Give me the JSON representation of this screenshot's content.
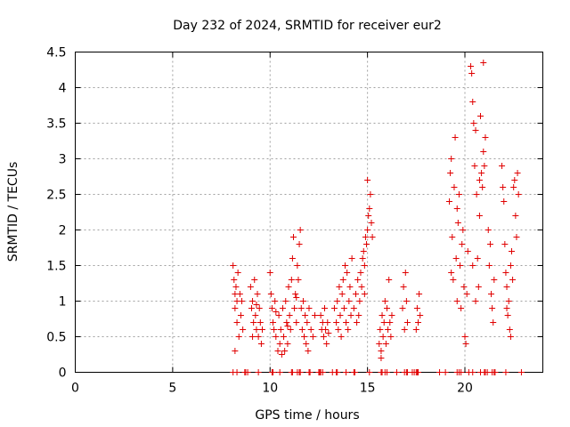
{
  "chart_data": {
    "type": "scatter",
    "title": "Day 232 of 2024, SRMTID for receiver eur2",
    "xlabel": "GPS time / hours",
    "ylabel": "SRMTID / TECUs",
    "xlim": [
      0,
      24
    ],
    "ylim": [
      0,
      4.5
    ],
    "xticks": [
      0,
      5,
      10,
      15,
      20
    ],
    "yticks": [
      0,
      0.5,
      1,
      1.5,
      2,
      2.5,
      3,
      3.5,
      4,
      4.5
    ],
    "xtick_labels": [
      "0",
      "5",
      "10",
      "15",
      "20"
    ],
    "ytick_labels": [
      "0",
      "0.5",
      "1",
      "1.5",
      "2",
      "2.5",
      "3",
      "3.5",
      "4",
      "4.5"
    ],
    "grid": true,
    "marker": "+",
    "color": "#e00000",
    "series": [
      {
        "name": "SRMTID",
        "points": [
          [
            8.1,
            1.5
          ],
          [
            8.15,
            1.3
          ],
          [
            8.2,
            1.1
          ],
          [
            8.2,
            0.9
          ],
          [
            8.25,
            1.2
          ],
          [
            8.3,
            0.7
          ],
          [
            8.3,
            1.0
          ],
          [
            8.35,
            1.4
          ],
          [
            8.4,
            0.5
          ],
          [
            8.45,
            1.1
          ],
          [
            8.5,
            0.8
          ],
          [
            8.55,
            1.0
          ],
          [
            8.6,
            0.6
          ],
          [
            8.2,
            0.3
          ],
          [
            9.0,
            1.2
          ],
          [
            9.05,
            0.9
          ],
          [
            9.1,
            1.0
          ],
          [
            9.15,
            0.7
          ],
          [
            9.2,
            1.3
          ],
          [
            9.25,
            0.8
          ],
          [
            9.3,
            0.6
          ],
          [
            9.35,
            1.1
          ],
          [
            9.4,
            0.5
          ],
          [
            9.45,
            0.9
          ],
          [
            9.5,
            0.7
          ],
          [
            9.55,
            0.4
          ],
          [
            9.6,
            0.6
          ],
          [
            9.1,
            0.5
          ],
          [
            9.3,
            0.95
          ],
          [
            10.0,
            1.4
          ],
          [
            10.05,
            1.1
          ],
          [
            10.1,
            0.9
          ],
          [
            10.15,
            0.7
          ],
          [
            10.2,
            0.6
          ],
          [
            10.25,
            1.0
          ],
          [
            10.3,
            0.5
          ],
          [
            10.4,
            0.3
          ],
          [
            10.45,
            0.8
          ],
          [
            10.5,
            0.4
          ],
          [
            10.55,
            0.6
          ],
          [
            10.6,
            0.25
          ],
          [
            10.65,
            0.9
          ],
          [
            10.7,
            0.5
          ],
          [
            10.75,
            0.3
          ],
          [
            10.8,
            1.0
          ],
          [
            10.85,
            0.7
          ],
          [
            10.9,
            0.4
          ],
          [
            10.95,
            1.2
          ],
          [
            11.0,
            0.8
          ],
          [
            11.05,
            0.6
          ],
          [
            11.1,
            1.3
          ],
          [
            11.15,
            1.6
          ],
          [
            11.2,
            1.9
          ],
          [
            11.25,
            0.9
          ],
          [
            11.3,
            1.1
          ],
          [
            11.35,
            0.7
          ],
          [
            11.4,
            1.5
          ],
          [
            11.45,
            1.3
          ],
          [
            11.5,
            1.8
          ],
          [
            11.55,
            2.0
          ],
          [
            11.6,
            0.9
          ],
          [
            11.65,
            0.6
          ],
          [
            11.7,
            1.0
          ],
          [
            11.75,
            0.5
          ],
          [
            11.8,
            0.8
          ],
          [
            11.85,
            0.4
          ],
          [
            11.9,
            0.7
          ],
          [
            11.95,
            0.3
          ],
          [
            12.0,
            0.9
          ],
          [
            12.1,
            0.6
          ],
          [
            12.2,
            0.5
          ],
          [
            12.3,
            0.8
          ],
          [
            10.3,
            0.85
          ],
          [
            10.9,
            0.65
          ],
          [
            11.35,
            1.05
          ],
          [
            12.6,
            0.8
          ],
          [
            12.65,
            0.6
          ],
          [
            12.7,
            0.7
          ],
          [
            12.75,
            0.5
          ],
          [
            12.8,
            0.9
          ],
          [
            12.85,
            0.6
          ],
          [
            12.9,
            0.4
          ],
          [
            12.95,
            0.7
          ],
          [
            13.0,
            0.55
          ],
          [
            13.3,
            0.9
          ],
          [
            13.4,
            0.7
          ],
          [
            13.45,
            1.0
          ],
          [
            13.5,
            0.6
          ],
          [
            13.55,
            1.2
          ],
          [
            13.6,
            0.8
          ],
          [
            13.65,
            0.5
          ],
          [
            13.7,
            1.1
          ],
          [
            13.75,
            1.3
          ],
          [
            13.8,
            0.9
          ],
          [
            13.85,
            1.5
          ],
          [
            13.9,
            0.7
          ],
          [
            13.95,
            1.4
          ],
          [
            14.0,
            0.6
          ],
          [
            14.05,
            1.0
          ],
          [
            14.1,
            1.2
          ],
          [
            14.15,
            0.8
          ],
          [
            14.2,
            1.6
          ],
          [
            14.3,
            0.9
          ],
          [
            14.4,
            1.1
          ],
          [
            14.45,
            0.7
          ],
          [
            14.5,
            1.3
          ],
          [
            14.55,
            0.8
          ],
          [
            14.6,
            1.0
          ],
          [
            14.65,
            1.4
          ],
          [
            14.7,
            1.2
          ],
          [
            14.75,
            1.6
          ],
          [
            14.8,
            1.7
          ],
          [
            14.85,
            1.5
          ],
          [
            14.9,
            1.9
          ],
          [
            14.95,
            1.8
          ],
          [
            15.0,
            2.0
          ],
          [
            15.05,
            2.2
          ],
          [
            15.1,
            2.3
          ],
          [
            15.15,
            2.5
          ],
          [
            15.2,
            2.1
          ],
          [
            15.25,
            1.9
          ],
          [
            15.0,
            2.7
          ],
          [
            14.85,
            1.1
          ],
          [
            15.6,
            0.4
          ],
          [
            15.65,
            0.6
          ],
          [
            15.7,
            0.3
          ],
          [
            15.75,
            0.8
          ],
          [
            15.8,
            0.5
          ],
          [
            15.85,
            0.7
          ],
          [
            15.9,
            1.0
          ],
          [
            15.95,
            0.4
          ],
          [
            16.0,
            0.9
          ],
          [
            16.05,
            0.6
          ],
          [
            16.1,
            1.3
          ],
          [
            16.15,
            0.7
          ],
          [
            16.2,
            0.5
          ],
          [
            16.25,
            0.8
          ],
          [
            15.7,
            0.2
          ],
          [
            16.8,
            0.9
          ],
          [
            16.85,
            1.2
          ],
          [
            16.9,
            0.6
          ],
          [
            16.95,
            1.4
          ],
          [
            17.0,
            1.0
          ],
          [
            17.05,
            0.7
          ],
          [
            17.5,
            0.6
          ],
          [
            17.55,
            0.9
          ],
          [
            17.6,
            0.7
          ],
          [
            17.65,
            1.1
          ],
          [
            17.7,
            0.8
          ],
          [
            19.2,
            2.4
          ],
          [
            19.25,
            2.8
          ],
          [
            19.3,
            3.0
          ],
          [
            19.35,
            1.9
          ],
          [
            19.4,
            1.3
          ],
          [
            19.45,
            2.6
          ],
          [
            19.5,
            3.3
          ],
          [
            19.55,
            1.6
          ],
          [
            19.6,
            1.0
          ],
          [
            19.65,
            2.1
          ],
          [
            19.7,
            2.5
          ],
          [
            19.75,
            1.5
          ],
          [
            19.8,
            0.9
          ],
          [
            19.85,
            1.8
          ],
          [
            19.9,
            2.0
          ],
          [
            19.95,
            1.2
          ],
          [
            20.0,
            0.5
          ],
          [
            20.05,
            0.4
          ],
          [
            20.1,
            1.1
          ],
          [
            20.15,
            1.7
          ],
          [
            19.3,
            1.4
          ],
          [
            19.6,
            2.3
          ],
          [
            20.3,
            4.3
          ],
          [
            20.35,
            4.2
          ],
          [
            20.4,
            3.8
          ],
          [
            20.45,
            3.5
          ],
          [
            20.5,
            2.9
          ],
          [
            20.55,
            3.4
          ],
          [
            20.6,
            2.5
          ],
          [
            20.65,
            1.6
          ],
          [
            20.7,
            1.2
          ],
          [
            20.75,
            2.2
          ],
          [
            20.8,
            3.6
          ],
          [
            20.85,
            2.8
          ],
          [
            20.9,
            2.6
          ],
          [
            20.95,
            3.1
          ],
          [
            21.0,
            2.9
          ],
          [
            21.05,
            3.3
          ],
          [
            20.95,
            4.35
          ],
          [
            20.4,
            1.5
          ],
          [
            20.55,
            1.0
          ],
          [
            20.75,
            2.7
          ],
          [
            21.2,
            2.0
          ],
          [
            21.25,
            1.5
          ],
          [
            21.3,
            1.8
          ],
          [
            21.35,
            1.1
          ],
          [
            21.4,
            0.9
          ],
          [
            21.45,
            0.7
          ],
          [
            21.5,
            1.3
          ],
          [
            21.9,
            2.9
          ],
          [
            21.95,
            2.6
          ],
          [
            22.0,
            2.4
          ],
          [
            22.05,
            1.8
          ],
          [
            22.1,
            1.4
          ],
          [
            22.15,
            1.2
          ],
          [
            22.2,
            0.8
          ],
          [
            22.25,
            1.0
          ],
          [
            22.3,
            0.6
          ],
          [
            22.35,
            0.5
          ],
          [
            22.4,
            1.7
          ],
          [
            22.45,
            1.3
          ],
          [
            22.5,
            2.6
          ],
          [
            22.55,
            2.7
          ],
          [
            22.6,
            2.2
          ],
          [
            22.65,
            1.9
          ],
          [
            22.7,
            2.8
          ],
          [
            22.75,
            2.5
          ],
          [
            22.15,
            0.9
          ],
          [
            22.35,
            1.5
          ],
          [
            8.1,
            0
          ],
          [
            8.3,
            0
          ],
          [
            8.7,
            0
          ],
          [
            8.75,
            0
          ],
          [
            8.85,
            0
          ],
          [
            9.4,
            0
          ],
          [
            10.1,
            0
          ],
          [
            10.15,
            0
          ],
          [
            10.5,
            0
          ],
          [
            11.1,
            0
          ],
          [
            11.15,
            0
          ],
          [
            11.4,
            0
          ],
          [
            11.5,
            0
          ],
          [
            11.55,
            0
          ],
          [
            12.0,
            0
          ],
          [
            12.05,
            0
          ],
          [
            12.5,
            0
          ],
          [
            12.55,
            0
          ],
          [
            12.6,
            0
          ],
          [
            12.7,
            0
          ],
          [
            13.2,
            0
          ],
          [
            13.4,
            0
          ],
          [
            13.45,
            0
          ],
          [
            13.9,
            0
          ],
          [
            14.3,
            0
          ],
          [
            14.35,
            0
          ],
          [
            15.1,
            0
          ],
          [
            15.7,
            0
          ],
          [
            15.75,
            0
          ],
          [
            15.9,
            0
          ],
          [
            16.0,
            0
          ],
          [
            16.5,
            0
          ],
          [
            16.9,
            0
          ],
          [
            17.0,
            0
          ],
          [
            17.05,
            0
          ],
          [
            17.3,
            0
          ],
          [
            17.4,
            0
          ],
          [
            17.5,
            0
          ],
          [
            17.55,
            0
          ],
          [
            17.6,
            0
          ],
          [
            18.7,
            0
          ],
          [
            19.0,
            0
          ],
          [
            19.6,
            0
          ],
          [
            19.7,
            0
          ],
          [
            19.8,
            0
          ],
          [
            20.2,
            0
          ],
          [
            20.4,
            0
          ],
          [
            20.8,
            0
          ],
          [
            21.0,
            0
          ],
          [
            21.05,
            0
          ],
          [
            21.15,
            0
          ],
          [
            21.4,
            0
          ],
          [
            21.5,
            0
          ],
          [
            21.55,
            0
          ],
          [
            22.1,
            0
          ],
          [
            22.9,
            0
          ]
        ]
      }
    ]
  }
}
